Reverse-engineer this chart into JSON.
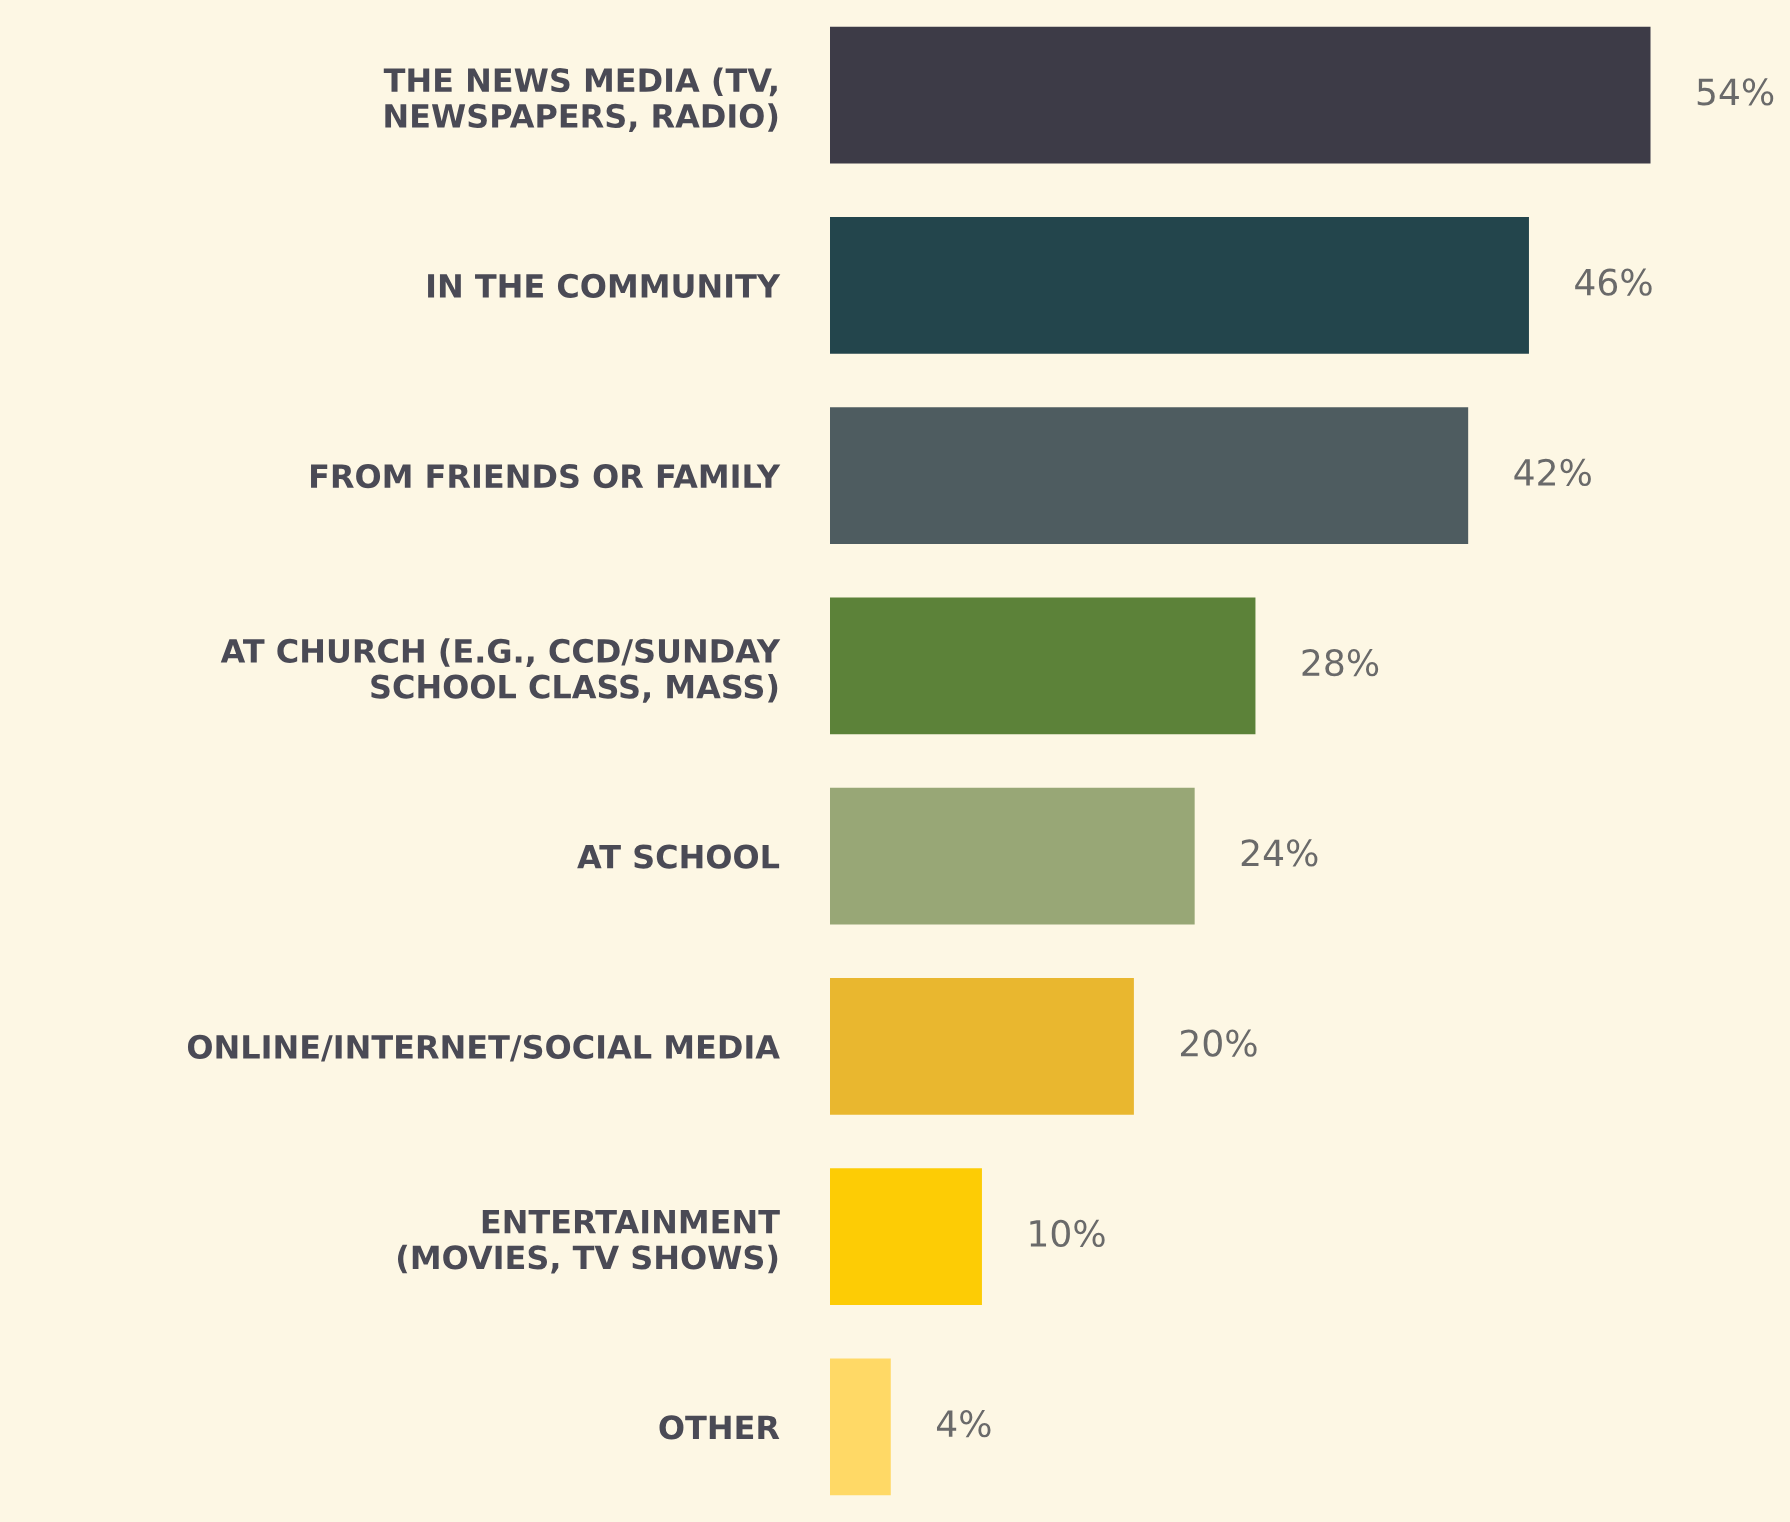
{
  "chart_data": {
    "type": "bar",
    "orientation": "horizontal",
    "data_labels": true,
    "categories": [
      "THE NEWS MEDIA (TV,\nNEWSPAPERS, RADIO)",
      "IN THE COMMUNITY",
      "FROM FRIENDS OR FAMILY",
      "AT CHURCH (E.G., CCD/SUNDAY\nSCHOOL CLASS, MASS)",
      "AT SCHOOL",
      "ONLINE/INTERNET/SOCIAL MEDIA",
      "ENTERTAINMENT\n(MOVIES, TV SHOWS)",
      "OTHER"
    ],
    "values": [
      54,
      46,
      42,
      28,
      24,
      20,
      10,
      4
    ],
    "value_labels": [
      "54%",
      "46%",
      "42%",
      "28%",
      "24%",
      "20%",
      "10%",
      "4%"
    ],
    "colors": [
      "#3d3b47",
      "#23454c",
      "#4e5c60",
      "#5c8239",
      "#98a776",
      "#e9b72f",
      "#fdcc05",
      "#ffd966"
    ],
    "grid": false,
    "legend": false
  }
}
